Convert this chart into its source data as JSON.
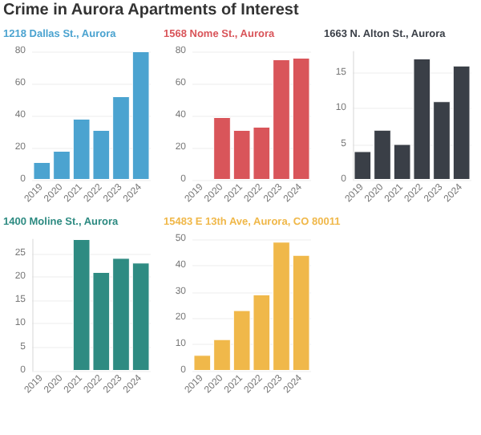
{
  "chart_data": [
    {
      "type": "bar",
      "title": "Crime in Aurora Apartments of Interest",
      "subtitle": "1218 Dallas St., Aurora",
      "categories": [
        "2019",
        "2020",
        "2021",
        "2022",
        "2023",
        "2024"
      ],
      "values": [
        11,
        18,
        38,
        31,
        52,
        80
      ],
      "color": "#4ba3d0",
      "ylim": [
        0,
        80
      ],
      "yticks": [
        0,
        20,
        40,
        60,
        80
      ],
      "grid": "y"
    },
    {
      "type": "bar",
      "subtitle": "1568 Nome St., Aurora",
      "categories": [
        "2019",
        "2020",
        "2021",
        "2022",
        "2023",
        "2024"
      ],
      "values": [
        null,
        39,
        31,
        33,
        75,
        76
      ],
      "color": "#d9555a",
      "ylim": [
        0,
        80
      ],
      "yticks": [
        0,
        20,
        40,
        60,
        80
      ],
      "grid": "y"
    },
    {
      "type": "bar",
      "subtitle": "1663 N. Alton St., Aurora",
      "categories": [
        "2019",
        "2020",
        "2021",
        "2022",
        "2023",
        "2024"
      ],
      "values": [
        4,
        7,
        5,
        17,
        11,
        16
      ],
      "color": "#3a3f47",
      "ylim": [
        0,
        18
      ],
      "yticks": [
        0,
        5,
        10,
        15
      ],
      "grid": "y"
    },
    {
      "type": "bar",
      "subtitle": "1400 Moline St., Aurora",
      "categories": [
        "2019",
        "2020",
        "2021",
        "2022",
        "2023",
        "2024"
      ],
      "values": [
        null,
        null,
        28,
        21,
        24,
        23
      ],
      "color": "#2e8b82",
      "ylim": [
        0,
        28
      ],
      "yticks": [
        0,
        5,
        10,
        15,
        20,
        25
      ],
      "grid": "y"
    },
    {
      "type": "bar",
      "subtitle": "15483 E 13th Ave, Aurora, CO 80011",
      "categories": [
        "2019",
        "2020",
        "2021",
        "2022",
        "2023",
        "2024"
      ],
      "values": [
        6,
        12,
        23,
        29,
        49,
        44
      ],
      "color": "#f0b84a",
      "ylim": [
        0,
        50
      ],
      "yticks": [
        0,
        10,
        20,
        30,
        40,
        50
      ],
      "grid": "y"
    }
  ]
}
